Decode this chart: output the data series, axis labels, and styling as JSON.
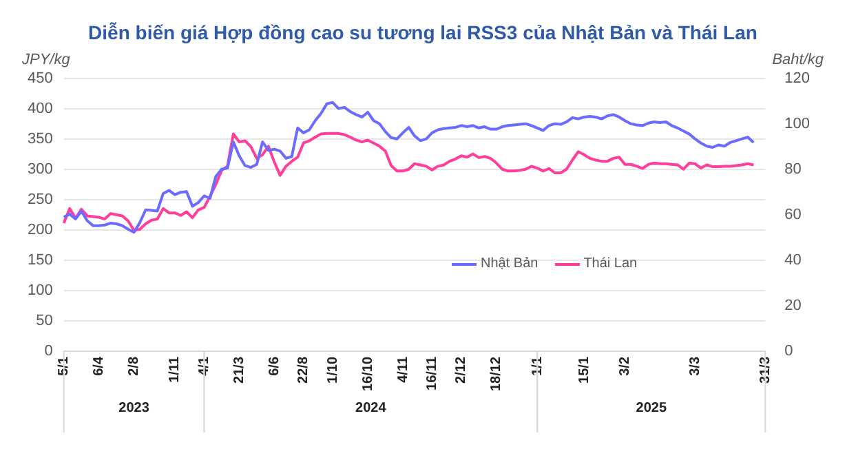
{
  "chart_data": {
    "type": "line",
    "title": "Diễn biến giá Hợp đồng cao su tương lai RSS3 của Nhật Bản và Thái Lan",
    "ylabel": "JPY/kg",
    "y2label": "Baht/kg",
    "categories": [
      "5/1",
      null,
      null,
      null,
      null,
      null,
      "6/4",
      null,
      null,
      null,
      null,
      null,
      "2/8",
      null,
      null,
      null,
      null,
      null,
      null,
      "1/11",
      null,
      null,
      null,
      null,
      "4/1",
      null,
      null,
      null,
      null,
      null,
      "21/3",
      null,
      null,
      null,
      null,
      null,
      "6/6",
      null,
      null,
      null,
      null,
      "22/8",
      null,
      null,
      null,
      null,
      "1/10",
      null,
      null,
      null,
      null,
      null,
      "16/10",
      null,
      null,
      null,
      null,
      null,
      "4/11",
      null,
      null,
      null,
      null,
      "16/11",
      null,
      null,
      null,
      null,
      "2/12",
      null,
      null,
      null,
      null,
      null,
      "18/12",
      null,
      null,
      null,
      null,
      null,
      null,
      "1/1",
      null,
      null,
      null,
      null,
      null,
      null,
      null,
      "15/1",
      null,
      null,
      null,
      null,
      null,
      null,
      "3/2",
      null,
      null,
      null,
      null,
      null,
      null,
      null,
      null,
      null,
      null,
      null,
      "3/3",
      null,
      null,
      null,
      null,
      null,
      null,
      null,
      null,
      null,
      null,
      null,
      "31/3"
    ],
    "annotations": [
      "2023",
      "2024",
      "2025"
    ],
    "series": [
      {
        "name": "Nhật Bản",
        "color": "#6b6bff",
        "values": [
          221,
          226,
          218,
          231,
          215,
          207,
          207,
          208,
          211,
          210,
          207,
          201,
          196,
          212,
          233,
          232,
          231,
          260,
          265,
          258,
          262,
          263,
          239,
          245,
          256,
          252,
          288,
          300,
          302,
          345,
          322,
          306,
          303,
          308,
          345,
          331,
          333,
          330,
          318,
          321,
          368,
          360,
          365,
          380,
          392,
          408,
          410,
          400,
          402,
          395,
          390,
          386,
          394,
          380,
          375,
          362,
          352,
          350,
          360,
          369,
          355,
          347,
          350,
          360,
          365,
          367,
          368,
          369,
          372,
          370,
          372,
          368,
          370,
          366,
          366,
          370,
          372,
          373,
          374,
          375,
          372,
          368,
          364,
          372,
          375,
          374,
          378,
          385,
          383,
          386,
          387,
          386,
          383,
          388,
          390,
          386,
          380,
          375,
          373,
          372,
          376,
          378,
          377,
          378,
          372,
          368,
          363,
          358,
          350,
          343,
          338,
          336,
          340,
          338,
          344,
          347,
          350,
          353,
          344,
          null,
          null
        ]
      },
      {
        "name": "Thái Lan",
        "color": "#ff3d9a",
        "axis": "y2",
        "values": [
          56.3,
          62.7,
          58.4,
          62.4,
          59.5,
          59.2,
          58.9,
          58.1,
          60.5,
          60,
          59.5,
          57.3,
          53.1,
          53.6,
          56,
          57.6,
          58.1,
          62.7,
          60.8,
          60.8,
          59.7,
          61.3,
          58.7,
          62.1,
          63.2,
          68,
          73.3,
          79.5,
          81.3,
          95.5,
          92,
          92.5,
          89.9,
          84.8,
          86.4,
          90.1,
          83.2,
          77.3,
          81.3,
          83.5,
          85.3,
          91.5,
          92.5,
          94.1,
          95.5,
          95.7,
          95.7,
          95.7,
          95.2,
          94.1,
          92.8,
          92,
          92.8,
          91.5,
          90.1,
          88,
          81.6,
          79.2,
          79.2,
          80,
          82.4,
          81.9,
          81.3,
          79.7,
          81.3,
          81.9,
          83.5,
          84.5,
          85.9,
          85.3,
          86.7,
          85.1,
          85.6,
          84.8,
          82.7,
          80,
          79.2,
          79.2,
          79.5,
          80,
          81.3,
          80.5,
          79.2,
          80.3,
          78.4,
          78.4,
          80,
          84,
          87.7,
          86.4,
          84.8,
          84,
          83.5,
          83.5,
          84.8,
          85.3,
          82.1,
          82.1,
          81.3,
          80.3,
          82.1,
          82.7,
          82.4,
          82.4,
          82.1,
          81.9,
          80,
          82.7,
          82.4,
          80.5,
          81.9,
          81.1,
          81.1,
          81.3,
          81.3,
          81.6,
          81.9,
          82.4,
          81.9,
          null,
          null
        ]
      }
    ],
    "ylim": [
      0,
      450
    ],
    "yticks": [
      0,
      50,
      100,
      150,
      200,
      250,
      300,
      350,
      400,
      450
    ],
    "y2lim": [
      0,
      120
    ],
    "y2ticks": [
      0,
      20,
      40,
      60,
      80,
      100,
      120
    ],
    "grid": "y",
    "legend": "right",
    "marker": "none",
    "line_style": "solid"
  }
}
